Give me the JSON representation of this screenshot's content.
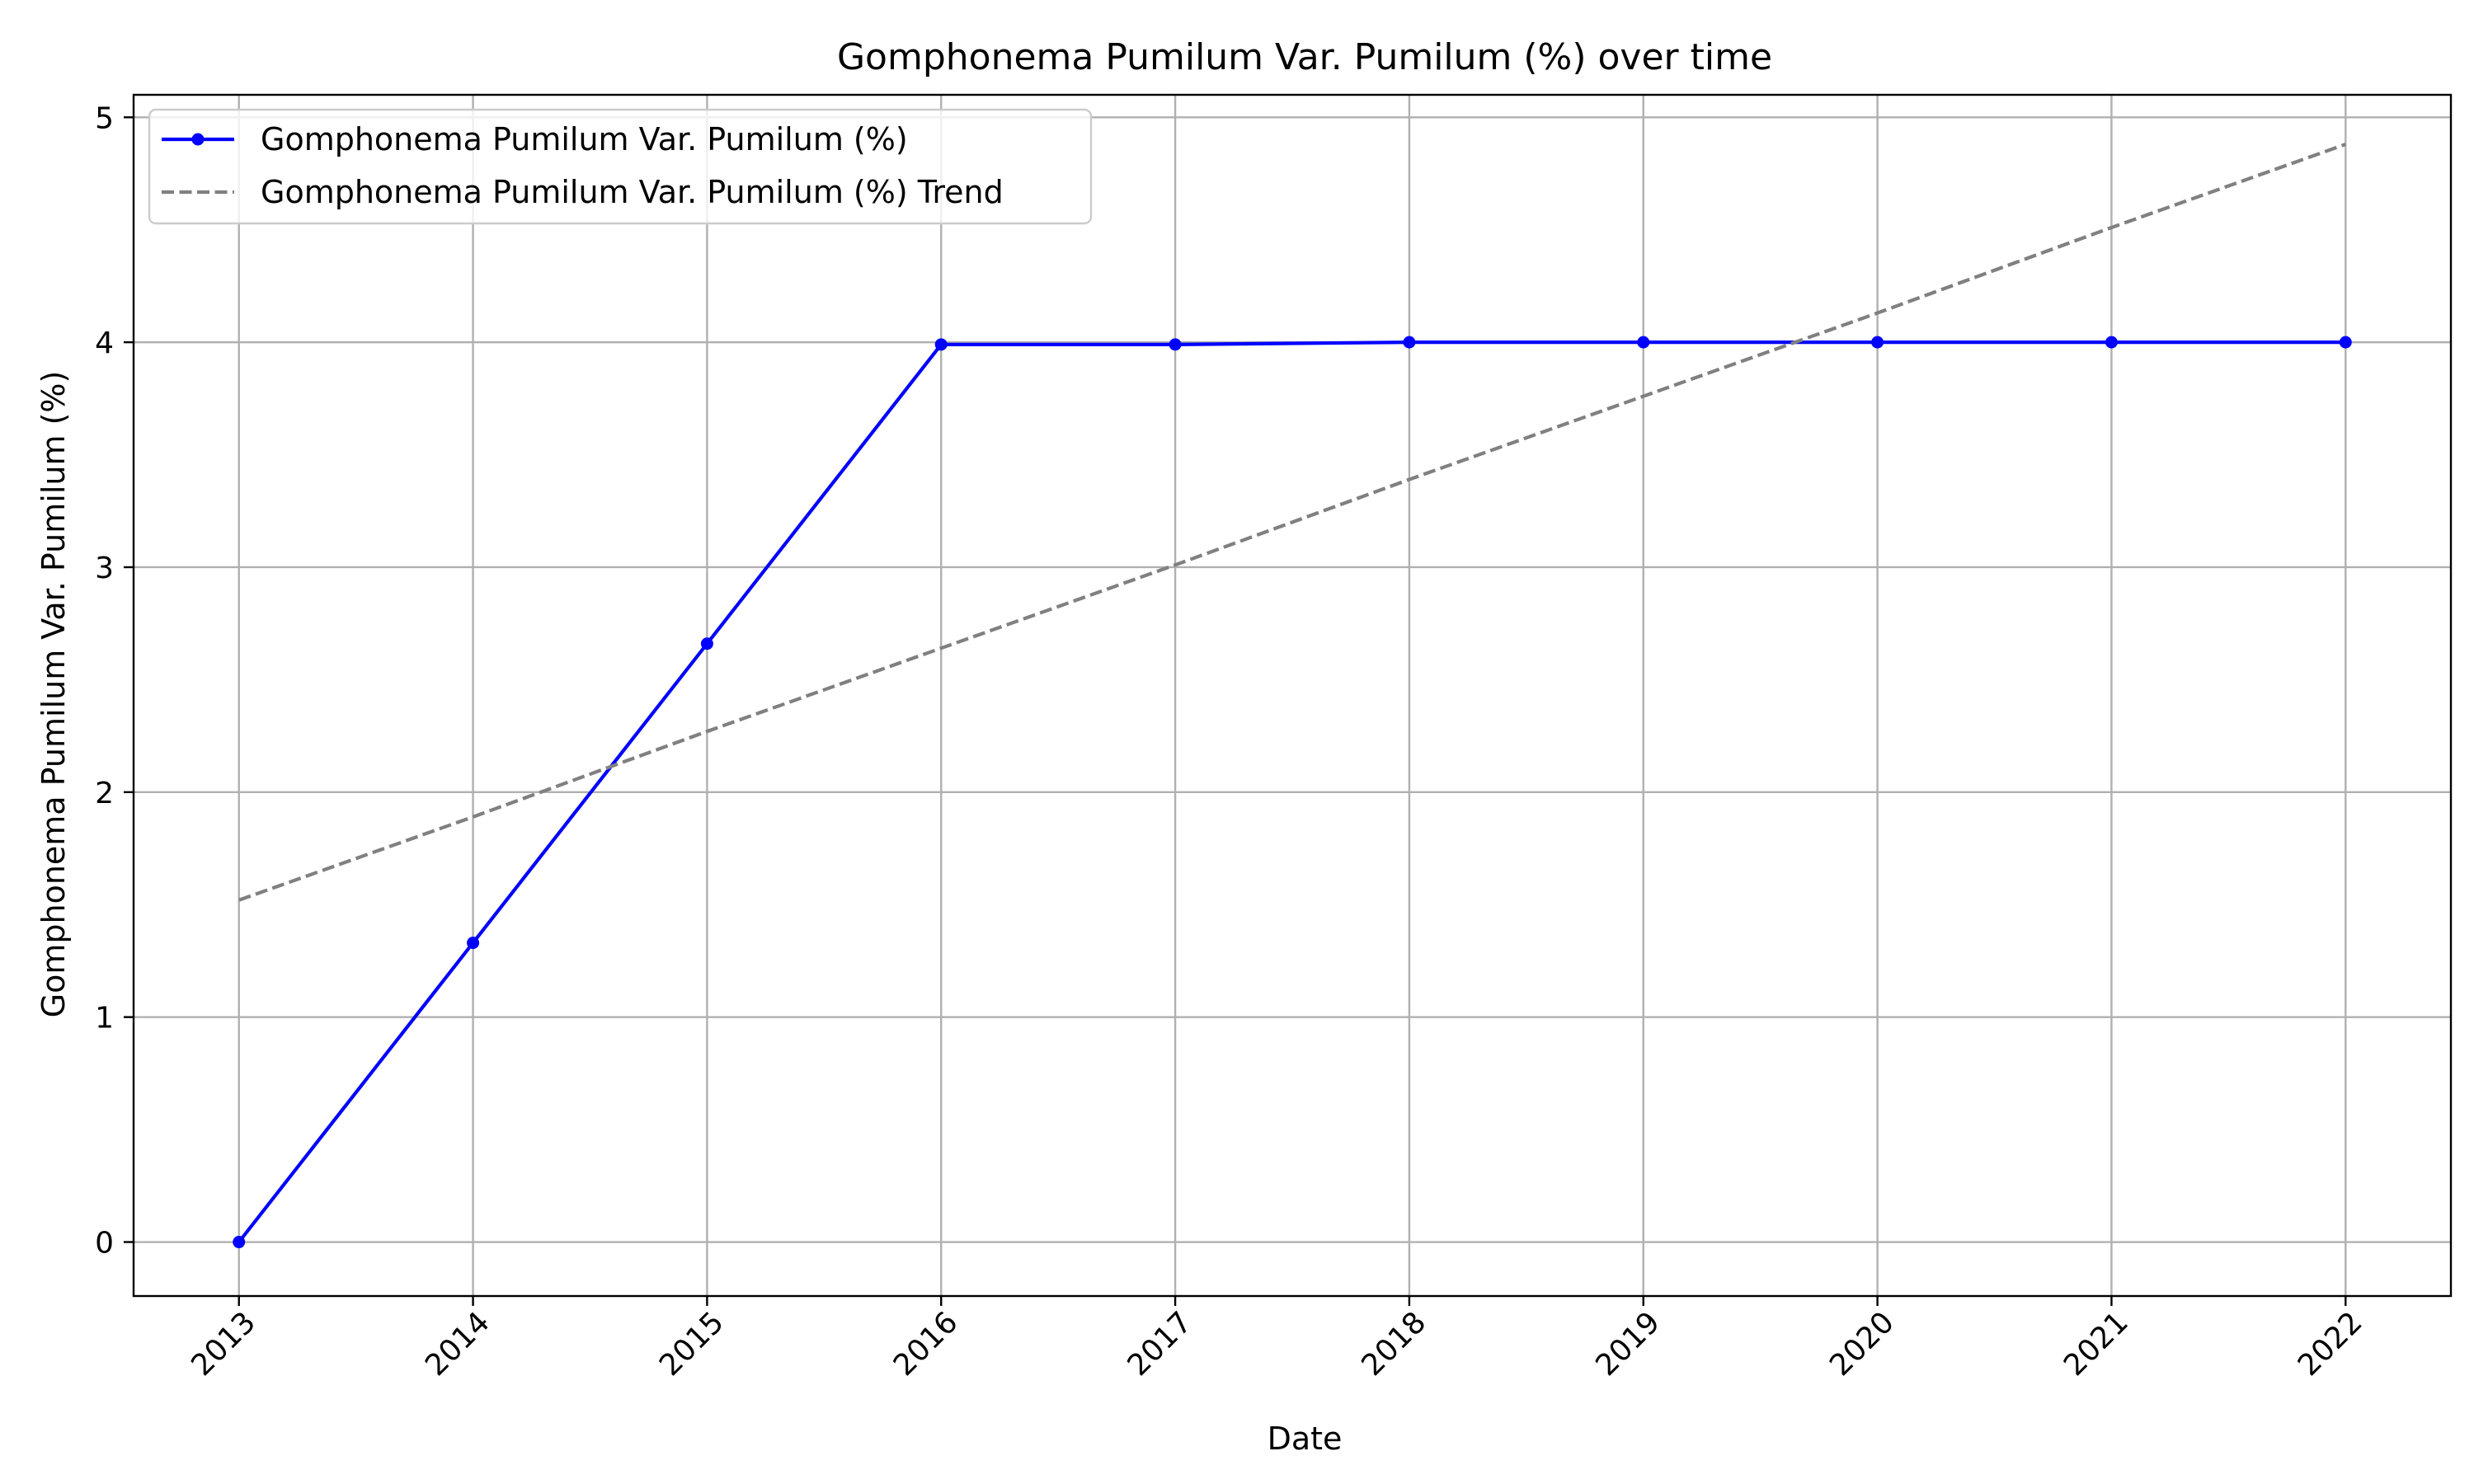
{
  "chart_data": {
    "type": "line",
    "title": "Gomphonema Pumilum Var. Pumilum (%) over time",
    "xlabel": "Date",
    "ylabel": "Gomphonema Pumilum Var. Pumilum (%)",
    "x": [
      "2013",
      "2014",
      "2015",
      "2016",
      "2017",
      "2018",
      "2019",
      "2020",
      "2021",
      "2022"
    ],
    "xlim": [
      2012.55,
      2022.45
    ],
    "ylim": [
      -0.24,
      5.1
    ],
    "yticks": [
      0,
      1,
      2,
      3,
      4,
      5
    ],
    "grid": true,
    "legend_position": "upper-left",
    "series": [
      {
        "name": "Gomphonema Pumilum Var. Pumilum (%)",
        "color": "#0000ff",
        "style": "solid",
        "marker": "circle",
        "values": [
          0.0,
          1.33,
          2.66,
          3.99,
          3.99,
          4.0,
          4.0,
          4.0,
          4.0,
          4.0
        ]
      },
      {
        "name": "Gomphonema Pumilum Var. Pumilum (%) Trend",
        "color": "#808080",
        "style": "dashed",
        "marker": "none",
        "values": [
          1.52,
          1.89,
          2.27,
          2.64,
          3.01,
          3.39,
          3.76,
          4.13,
          4.51,
          4.88
        ]
      }
    ]
  }
}
